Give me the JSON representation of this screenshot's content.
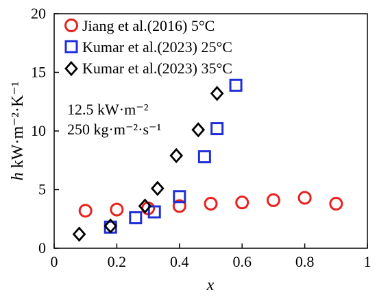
{
  "chart_data": {
    "type": "scatter",
    "xlim": [
      0,
      1
    ],
    "ylim": [
      0,
      20
    ],
    "x_ticks": [
      "0",
      "0.2",
      "0.4",
      "0.6",
      "0.8",
      "1"
    ],
    "y_ticks": [
      "0",
      "5",
      "10",
      "15",
      "20"
    ],
    "xlabel": "x",
    "ylabel": {
      "main": "h",
      "unit": "kW·m⁻²·K⁻¹"
    },
    "legend_position": "top-left",
    "annotations": [
      "12.5 kW·m⁻²",
      "250 kg·m⁻²·s⁻¹"
    ],
    "series": [
      {
        "name": "Jiang et al.(2016) 5°C",
        "marker": "circle",
        "color": "#e8211f",
        "points": [
          {
            "x": 0.1,
            "y": 3.2
          },
          {
            "x": 0.2,
            "y": 3.3
          },
          {
            "x": 0.3,
            "y": 3.4
          },
          {
            "x": 0.4,
            "y": 3.6
          },
          {
            "x": 0.5,
            "y": 3.8
          },
          {
            "x": 0.6,
            "y": 3.9
          },
          {
            "x": 0.7,
            "y": 4.1
          },
          {
            "x": 0.8,
            "y": 4.3
          },
          {
            "x": 0.9,
            "y": 3.8
          }
        ]
      },
      {
        "name": "Kumar et al.(2023) 25°C",
        "marker": "square",
        "color": "#1f2ed9",
        "points": [
          {
            "x": 0.18,
            "y": 1.8
          },
          {
            "x": 0.26,
            "y": 2.6
          },
          {
            "x": 0.32,
            "y": 3.1
          },
          {
            "x": 0.4,
            "y": 4.4
          },
          {
            "x": 0.48,
            "y": 7.8
          },
          {
            "x": 0.52,
            "y": 10.2
          },
          {
            "x": 0.58,
            "y": 13.9
          }
        ]
      },
      {
        "name": "Kumar et al.(2023) 35°C",
        "marker": "diamond",
        "color": "#000000",
        "points": [
          {
            "x": 0.08,
            "y": 1.2
          },
          {
            "x": 0.18,
            "y": 1.9
          },
          {
            "x": 0.29,
            "y": 3.6
          },
          {
            "x": 0.33,
            "y": 5.1
          },
          {
            "x": 0.39,
            "y": 7.9
          },
          {
            "x": 0.46,
            "y": 10.1
          },
          {
            "x": 0.52,
            "y": 13.2
          }
        ]
      }
    ]
  }
}
